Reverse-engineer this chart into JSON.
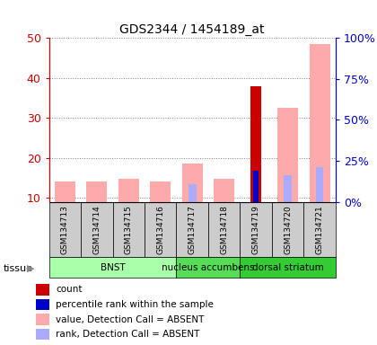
{
  "title": "GDS2344 / 1454189_at",
  "samples": [
    "GSM134713",
    "GSM134714",
    "GSM134715",
    "GSM134716",
    "GSM134717",
    "GSM134718",
    "GSM134719",
    "GSM134720",
    "GSM134721"
  ],
  "value_absent": [
    14.2,
    14.2,
    14.8,
    14.2,
    18.5,
    14.8,
    null,
    32.5,
    48.5
  ],
  "rank_absent": [
    null,
    null,
    null,
    null,
    11.0,
    null,
    null,
    16.0,
    21.0
  ],
  "count_present": [
    null,
    null,
    null,
    null,
    null,
    null,
    38.0,
    null,
    null
  ],
  "rank_present": [
    null,
    null,
    null,
    null,
    null,
    null,
    19.0,
    null,
    null
  ],
  "ylim_left": [
    9,
    50
  ],
  "ylim_right": [
    0,
    100
  ],
  "yticks_left": [
    10,
    20,
    30,
    40,
    50
  ],
  "yticks_right": [
    0,
    25,
    50,
    75,
    100
  ],
  "ytick_labels_right": [
    "0%",
    "25%",
    "50%",
    "75%",
    "100%"
  ],
  "color_value_absent": "#ffaaaa",
  "color_rank_absent": "#aaaaff",
  "color_count_present": "#cc0000",
  "color_rank_present": "#0000cc",
  "color_left_axis": "#cc0000",
  "color_right_axis": "#0000cc",
  "sample_bg_color": "#cccccc",
  "tissue_groups": [
    {
      "label": "BNST",
      "indices": [
        0,
        1,
        2,
        3
      ],
      "color": "#aaffaa"
    },
    {
      "label": "nucleus accumbens",
      "indices": [
        4,
        5
      ],
      "color": "#55dd55"
    },
    {
      "label": "dorsal striatum",
      "indices": [
        6,
        7,
        8
      ],
      "color": "#33cc33"
    }
  ],
  "legend_items": [
    {
      "color": "#cc0000",
      "label": "count"
    },
    {
      "color": "#0000cc",
      "label": "percentile rank within the sample"
    },
    {
      "color": "#ffaaaa",
      "label": "value, Detection Call = ABSENT"
    },
    {
      "color": "#aaaaff",
      "label": "rank, Detection Call = ABSENT"
    }
  ]
}
